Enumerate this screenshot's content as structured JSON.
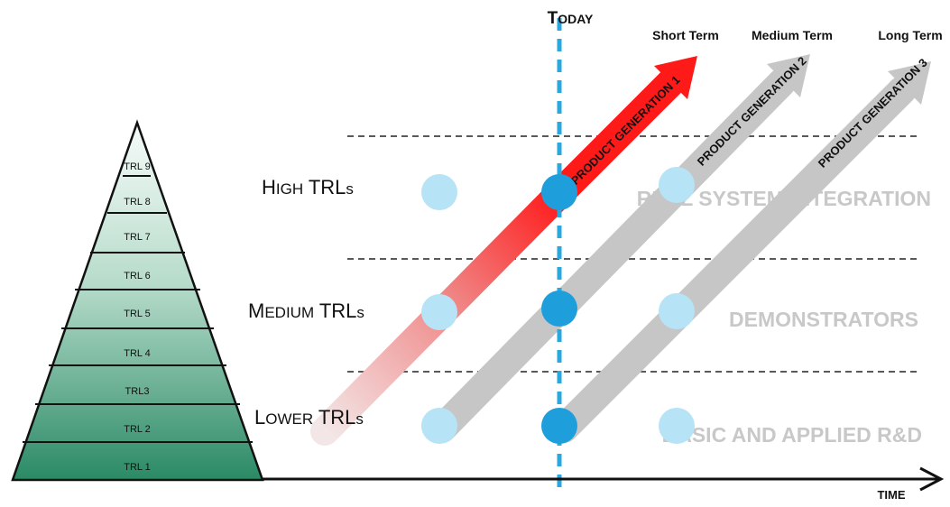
{
  "today_label": {
    "first": "T",
    "rest": "ODAY"
  },
  "time_label": "TIME",
  "horizons": [
    "Short Term",
    "Medium Term",
    "Long Term"
  ],
  "pyramid_levels": [
    "TRL 9",
    "TRL 8",
    "TRL 7",
    "TRL 6",
    "TRL 5",
    "TRL 4",
    "TRL3",
    "TRL 2",
    "TRL 1"
  ],
  "trl_bands": [
    {
      "first": "H",
      "small": "IGH",
      "mid": " TRL",
      "tail": "s"
    },
    {
      "first": "M",
      "small": "EDIUM",
      "mid": " TRL",
      "tail": "s"
    },
    {
      "first": "L",
      "small": "OWER",
      "mid": " TRL",
      "tail": "s"
    }
  ],
  "zones": [
    "REAL SYSTEM INTEGRATION",
    "DEMONSTRATORS",
    "BASIC AND APPLIED R&D"
  ],
  "generations": [
    "PRODUCT GENERATION 1",
    "PRODUCT GENERATION 2",
    "PRODUCT GENERATION 3"
  ],
  "colors": {
    "gen1": "#ff1a1a",
    "future_gen": "#c6c6c6",
    "today_line": "#29a8e0",
    "dot_light": "#b7e3f6",
    "dot_dark": "#1e9fdc",
    "pyramid_top": "#f6fbf9",
    "pyramid_bottom": "#2a8a65",
    "zone_text": "#c8c8c8"
  }
}
